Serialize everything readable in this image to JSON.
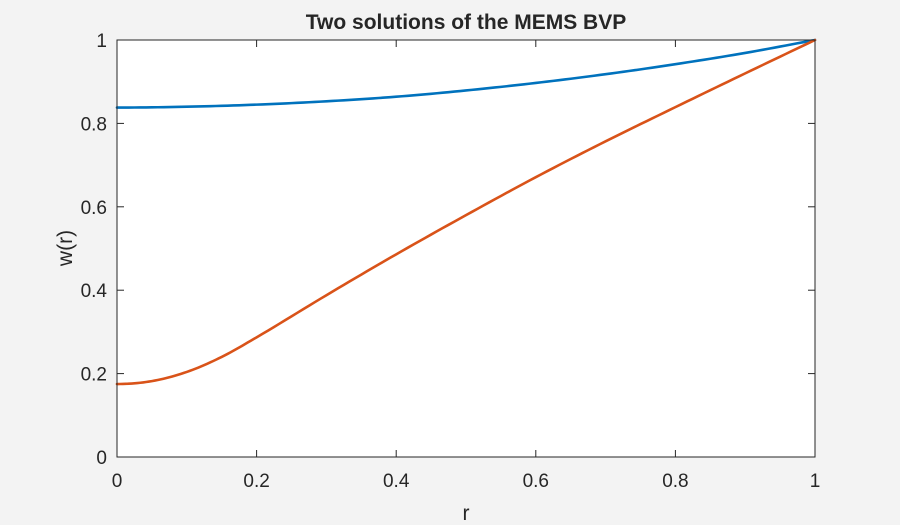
{
  "chart_data": {
    "type": "line",
    "title": "Two solutions of the MEMS BVP",
    "xlabel": "r",
    "ylabel": "w(r)",
    "xlim": [
      0,
      1
    ],
    "ylim": [
      0,
      1
    ],
    "xticks": [
      0,
      0.2,
      0.4,
      0.6,
      0.8,
      1
    ],
    "yticks": [
      0,
      0.2,
      0.4,
      0.6,
      0.8,
      1
    ],
    "xtick_labels": [
      "0",
      "0.2",
      "0.4",
      "0.6",
      "0.8",
      "1"
    ],
    "ytick_labels": [
      "0",
      "0.2",
      "0.4",
      "0.6",
      "0.8",
      "1"
    ],
    "grid": false,
    "legend": "none",
    "series": [
      {
        "color": "#0072bd",
        "x": [
          0,
          0.1,
          0.2,
          0.3,
          0.4,
          0.5,
          0.6,
          0.7,
          0.8,
          0.9,
          1.0
        ],
        "y": [
          0.838,
          0.84,
          0.845,
          0.853,
          0.864,
          0.879,
          0.897,
          0.918,
          0.942,
          0.969,
          1.0
        ]
      },
      {
        "color": "#d95319",
        "x": [
          0,
          0.05,
          0.1,
          0.15,
          0.2,
          0.3,
          0.4,
          0.5,
          0.6,
          0.7,
          0.8,
          0.9,
          1.0
        ],
        "y": [
          0.175,
          0.182,
          0.204,
          0.24,
          0.287,
          0.388,
          0.486,
          0.58,
          0.671,
          0.757,
          0.839,
          0.92,
          1.0
        ]
      }
    ]
  }
}
